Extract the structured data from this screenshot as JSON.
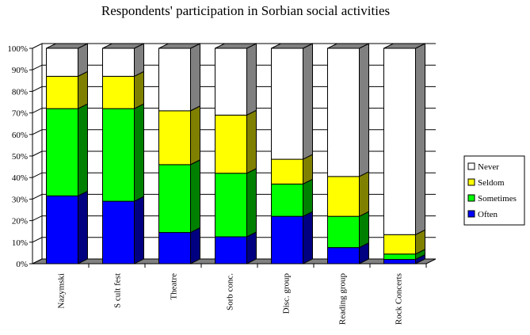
{
  "chart_data": {
    "type": "bar",
    "stacked": true,
    "percent": true,
    "three_d": true,
    "title": "Respondents' participation in Sorbian social activities",
    "categories": [
      "Nazymski",
      "S cult fest",
      "Theatre",
      "Sorb conc.",
      "Disc. group",
      "Reading group",
      "Rock Concerts"
    ],
    "series": [
      {
        "name": "Often",
        "color": "#0000ff",
        "side_color": "#000080",
        "values": [
          31.5,
          29,
          14.5,
          12.5,
          22,
          7.5,
          2
        ]
      },
      {
        "name": "Sometimes",
        "color": "#00ff00",
        "side_color": "#008000",
        "values": [
          40.5,
          43,
          31.5,
          29.5,
          15,
          14.5,
          2.5
        ]
      },
      {
        "name": "Seldom",
        "color": "#ffff00",
        "side_color": "#808000",
        "values": [
          15,
          15,
          25,
          27,
          11.5,
          18.5,
          9
        ]
      },
      {
        "name": "Never",
        "color": "#ffffff",
        "side_color": "#808080",
        "values": [
          13,
          13,
          29,
          31,
          51.5,
          59.5,
          86.5
        ]
      }
    ],
    "ylim": [
      0,
      100
    ],
    "yticks": [
      "0%",
      "10%",
      "20%",
      "30%",
      "40%",
      "50%",
      "60%",
      "70%",
      "80%",
      "90%",
      "100%"
    ],
    "legend_position": "right",
    "legend_order": [
      "Never",
      "Seldom",
      "Sometimes",
      "Often"
    ],
    "grid": true
  }
}
